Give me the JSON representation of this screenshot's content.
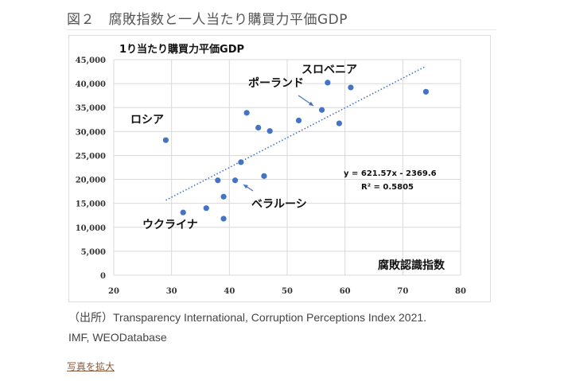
{
  "page": {
    "title": "図２　腐敗指数と一人当たり購買力平価GDP",
    "source_line1": "（出所）Transparency International, Corruption Perceptions Index 2021.",
    "source_line2": "IMF, WEODatabase",
    "enlarge_link": "写真を拡大"
  },
  "chart_data": {
    "type": "scatter",
    "ylabel": "1り当たり購買力平価GDP",
    "xlabel": "腐敗認識指数",
    "xlim": [
      20,
      80
    ],
    "ylim": [
      0,
      45000
    ],
    "xticks": [
      "20",
      "30",
      "40",
      "50",
      "60",
      "70",
      "80"
    ],
    "yticks": [
      "0",
      "5,000",
      "10,000",
      "15,000",
      "20,000",
      "25,000",
      "30,000",
      "35,000",
      "40,000",
      "45,000"
    ],
    "grid": true,
    "points": [
      [
        29,
        28200
      ],
      [
        32,
        13100
      ],
      [
        36,
        14000
      ],
      [
        38,
        19800
      ],
      [
        39,
        16400
      ],
      [
        39,
        11800
      ],
      [
        41,
        19800
      ],
      [
        42,
        23600
      ],
      [
        43,
        33900
      ],
      [
        45,
        30800
      ],
      [
        46,
        20700
      ],
      [
        47,
        30100
      ],
      [
        52,
        32300
      ],
      [
        56,
        34500
      ],
      [
        57,
        40200
      ],
      [
        59,
        31700
      ],
      [
        61,
        39200
      ],
      [
        74,
        38300
      ]
    ],
    "trendline": {
      "slope": 621.57,
      "intercept": -2369.6,
      "x_range": [
        29,
        74
      ],
      "equation": "y = 621.57x  - 2369.6",
      "r2": "R² = 0.5805"
    },
    "annotations": [
      "スロベニア",
      "ポーランド",
      "ロシア",
      "ベラルーシ",
      "ウクライナ"
    ],
    "color": "#4472c4"
  }
}
